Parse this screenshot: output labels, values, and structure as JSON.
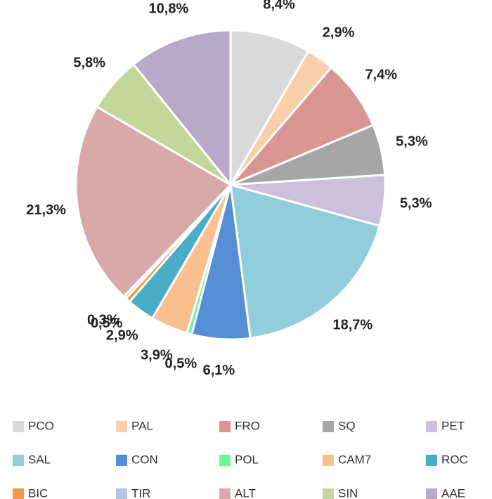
{
  "chart_data": {
    "type": "pie",
    "categories": [
      "PCO",
      "PAL",
      "FRO",
      "SQ",
      "PET",
      "SAL",
      "CON",
      "POL",
      "CAM7",
      "ROC",
      "BIC",
      "TIR",
      "ALT",
      "SIN",
      "AAE"
    ],
    "values": [
      8.4,
      2.9,
      7.4,
      5.3,
      5.3,
      18.7,
      6.1,
      0.5,
      3.9,
      2.9,
      0.5,
      0.3,
      21.3,
      5.8,
      10.8
    ],
    "value_labels": [
      "8,4%",
      "2,9%",
      "7,4%",
      "5,3%",
      "5,3%",
      "18,7%",
      "6,1%",
      "0,5%",
      "3,9%",
      "2,9%",
      "0,5%",
      "0,3%",
      "21,3%",
      "5,8%",
      "10,8%"
    ],
    "colors": [
      "#d9d9d9",
      "#f8cfaa",
      "#d99594",
      "#a6a6a6",
      "#ccc0da",
      "#92cddc",
      "#558ed5",
      "#6cf59a",
      "#fac090",
      "#4bacc6",
      "#f79646",
      "#b3c3e0",
      "#d9a8a8",
      "#c4d79b",
      "#b8a9c9"
    ],
    "legend": "bottom"
  }
}
